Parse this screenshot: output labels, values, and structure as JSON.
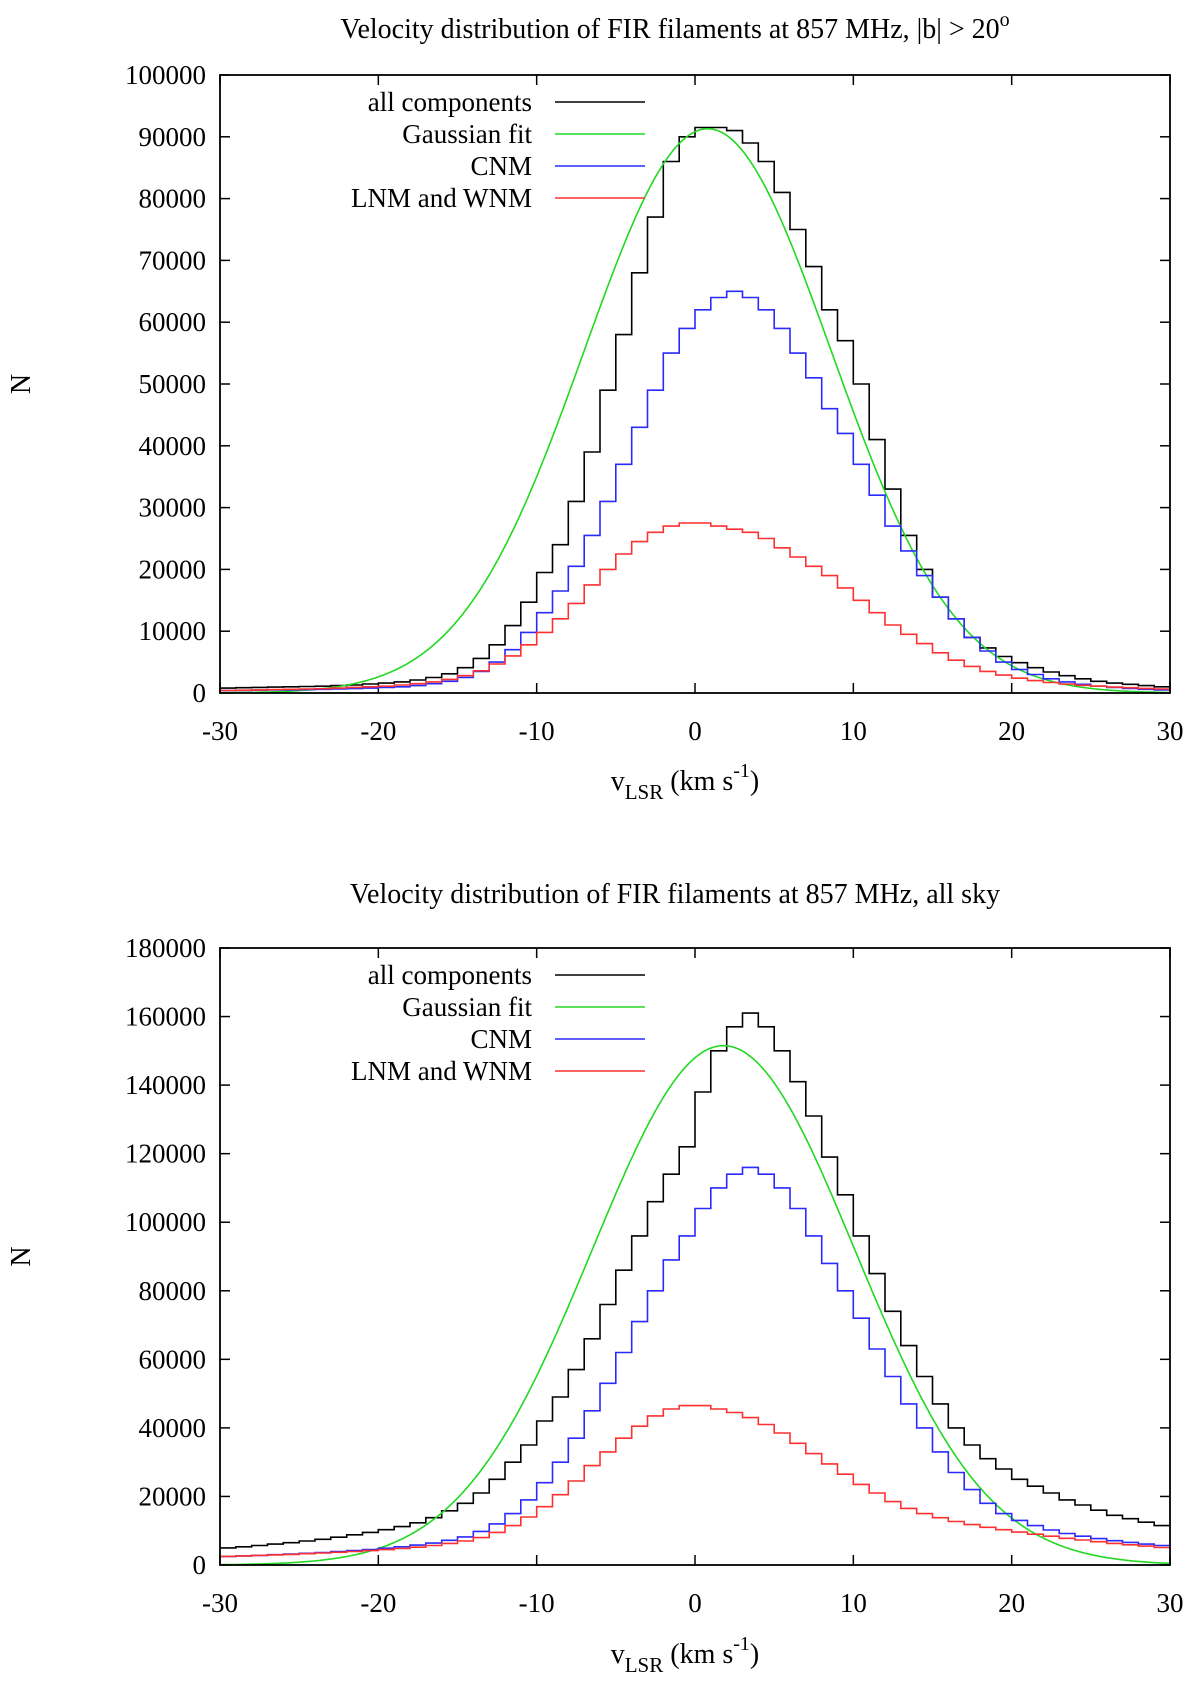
{
  "chart_data": [
    {
      "type": "line",
      "title": "Velocity distribution of FIR filaments at 857 MHz, |b| > 20",
      "title_superscript": "o",
      "xlabel": "v",
      "xlabel_subscript": "LSR",
      "xlabel_unit": " (km s",
      "xlabel_unit_sup": "-1",
      "xlabel_close": ")",
      "ylabel": "N",
      "xlim": [
        -30,
        30
      ],
      "ylim": [
        0,
        100000
      ],
      "xticks": [
        "-30",
        "-20",
        "-10",
        "0",
        "10",
        "20",
        "30"
      ],
      "yticks": [
        "0",
        "10000",
        "20000",
        "30000",
        "40000",
        "50000",
        "60000",
        "70000",
        "80000",
        "90000",
        "100000"
      ],
      "legend_position": "top-left",
      "bin_edges": [
        -30,
        -29,
        -28,
        -27,
        -26,
        -25,
        -24,
        -23,
        -22,
        -21,
        -20,
        -19,
        -18,
        -17,
        -16,
        -15,
        -14,
        -13,
        -12,
        -11,
        -10,
        -9,
        -8,
        -7,
        -6,
        -5,
        -4,
        -3,
        -2,
        -1,
        0,
        1,
        2,
        3,
        4,
        5,
        6,
        7,
        8,
        9,
        10,
        11,
        12,
        13,
        14,
        15,
        16,
        17,
        18,
        19,
        20,
        21,
        22,
        23,
        24,
        25,
        26,
        27,
        28,
        29,
        30
      ],
      "series": [
        {
          "name": "all components",
          "color": "#000000",
          "style": "step",
          "values": [
            800,
            850,
            900,
            950,
            1000,
            1050,
            1100,
            1200,
            1300,
            1450,
            1600,
            1800,
            2100,
            2500,
            3100,
            4100,
            5600,
            7800,
            10900,
            14700,
            19500,
            24000,
            31000,
            39000,
            49000,
            58000,
            68000,
            77000,
            86000,
            90000,
            91500,
            91500,
            91000,
            89000,
            86000,
            81000,
            75000,
            69000,
            62000,
            57000,
            50000,
            41000,
            33000,
            25500,
            20000,
            15500,
            12000,
            9000,
            7300,
            5900,
            4900,
            4100,
            3400,
            2800,
            2300,
            1900,
            1600,
            1400,
            1200,
            1000
          ]
        },
        {
          "name": "Gaussian fit",
          "color": "#22d822",
          "style": "smooth",
          "amplitude": 91300,
          "mean": 0.8,
          "sigma": 7.8
        },
        {
          "name": "CNM",
          "color": "#2a2aff",
          "style": "step",
          "values": [
            400,
            420,
            450,
            480,
            500,
            550,
            600,
            650,
            720,
            800,
            900,
            1000,
            1200,
            1500,
            1900,
            2500,
            3500,
            5000,
            7000,
            9800,
            13000,
            16500,
            20500,
            25500,
            31000,
            37000,
            43000,
            49000,
            55000,
            59000,
            62000,
            64000,
            65000,
            64000,
            62000,
            59000,
            55000,
            51000,
            46000,
            42000,
            37000,
            32000,
            27000,
            23000,
            19000,
            15500,
            12000,
            9000,
            6800,
            5000,
            3800,
            3000,
            2300,
            1800,
            1400,
            1100,
            900,
            750,
            600,
            500
          ]
        },
        {
          "name": "LNM and WNM",
          "color": "#ff3030",
          "style": "step",
          "values": [
            400,
            450,
            500,
            550,
            600,
            650,
            700,
            800,
            900,
            1000,
            1100,
            1300,
            1500,
            1800,
            2200,
            2800,
            3600,
            4700,
            6000,
            7800,
            9800,
            12000,
            14500,
            17500,
            20000,
            22500,
            24500,
            26000,
            27000,
            27500,
            27500,
            27000,
            26500,
            26000,
            25000,
            23500,
            22000,
            20500,
            19000,
            17000,
            15000,
            13000,
            11000,
            9500,
            8000,
            6500,
            5300,
            4300,
            3500,
            2900,
            2400,
            2000,
            1700,
            1450,
            1250,
            1100,
            950,
            850,
            750,
            650
          ]
        }
      ]
    },
    {
      "type": "line",
      "title": "Velocity distribution of FIR filaments at 857 MHz, all sky",
      "title_superscript": "",
      "xlabel": "v",
      "xlabel_subscript": "LSR",
      "xlabel_unit": " (km s",
      "xlabel_unit_sup": "-1",
      "xlabel_close": ")",
      "ylabel": "N",
      "xlim": [
        -30,
        30
      ],
      "ylim": [
        0,
        180000
      ],
      "xticks": [
        "-30",
        "-20",
        "-10",
        "0",
        "10",
        "20",
        "30"
      ],
      "yticks": [
        "0",
        "20000",
        "40000",
        "60000",
        "80000",
        "100000",
        "120000",
        "140000",
        "160000",
        "180000"
      ],
      "legend_position": "top-left",
      "bin_edges": [
        -30,
        -29,
        -28,
        -27,
        -26,
        -25,
        -24,
        -23,
        -22,
        -21,
        -20,
        -19,
        -18,
        -17,
        -16,
        -15,
        -14,
        -13,
        -12,
        -11,
        -10,
        -9,
        -8,
        -7,
        -6,
        -5,
        -4,
        -3,
        -2,
        -1,
        0,
        1,
        2,
        3,
        4,
        5,
        6,
        7,
        8,
        9,
        10,
        11,
        12,
        13,
        14,
        15,
        16,
        17,
        18,
        19,
        20,
        21,
        22,
        23,
        24,
        25,
        26,
        27,
        28,
        29,
        30
      ],
      "series": [
        {
          "name": "all components",
          "color": "#000000",
          "style": "step",
          "values": [
            5000,
            5300,
            5700,
            6100,
            6500,
            7000,
            7500,
            8100,
            8800,
            9500,
            10300,
            11200,
            12300,
            13800,
            15800,
            18000,
            21000,
            25000,
            30000,
            35000,
            42000,
            49000,
            57000,
            66000,
            76000,
            86000,
            96000,
            106000,
            114000,
            122000,
            138000,
            150000,
            157000,
            161000,
            157000,
            150000,
            141000,
            131000,
            119000,
            108000,
            96000,
            85000,
            74000,
            64000,
            55000,
            47000,
            40000,
            35000,
            31000,
            28000,
            25000,
            23000,
            21000,
            19000,
            17500,
            16000,
            14500,
            13500,
            12500,
            11500
          ]
        },
        {
          "name": "Gaussian fit",
          "color": "#22d822",
          "style": "smooth",
          "amplitude": 151500,
          "mean": 1.8,
          "sigma": 8.3
        },
        {
          "name": "CNM",
          "color": "#2a2aff",
          "style": "step",
          "values": [
            2500,
            2650,
            2800,
            3000,
            3200,
            3400,
            3650,
            3900,
            4200,
            4500,
            4900,
            5300,
            5800,
            6400,
            7200,
            8200,
            9800,
            12000,
            15000,
            19000,
            24000,
            30000,
            37000,
            45000,
            53000,
            62000,
            71000,
            80000,
            89000,
            96000,
            104000,
            110000,
            114000,
            116000,
            114000,
            110000,
            104000,
            96000,
            88000,
            80000,
            72000,
            63000,
            55000,
            47000,
            40000,
            33000,
            27000,
            22000,
            18000,
            15000,
            13000,
            11500,
            10200,
            9200,
            8400,
            7700,
            7100,
            6600,
            6100,
            5700
          ]
        },
        {
          "name": "LNM and WNM",
          "color": "#ff3030",
          "style": "step",
          "values": [
            2500,
            2650,
            2800,
            2950,
            3100,
            3300,
            3500,
            3700,
            3950,
            4200,
            4500,
            4800,
            5200,
            5700,
            6300,
            7000,
            8000,
            9500,
            11500,
            14000,
            17000,
            20500,
            24500,
            29000,
            33000,
            37000,
            40500,
            43500,
            45500,
            46500,
            46500,
            45500,
            44500,
            43000,
            41000,
            38500,
            35500,
            32500,
            29500,
            26500,
            23500,
            21000,
            18500,
            16500,
            15000,
            13800,
            12700,
            11800,
            11000,
            10300,
            9600,
            9000,
            8400,
            7800,
            7300,
            6800,
            6300,
            5900,
            5500,
            5100
          ]
        }
      ]
    }
  ]
}
